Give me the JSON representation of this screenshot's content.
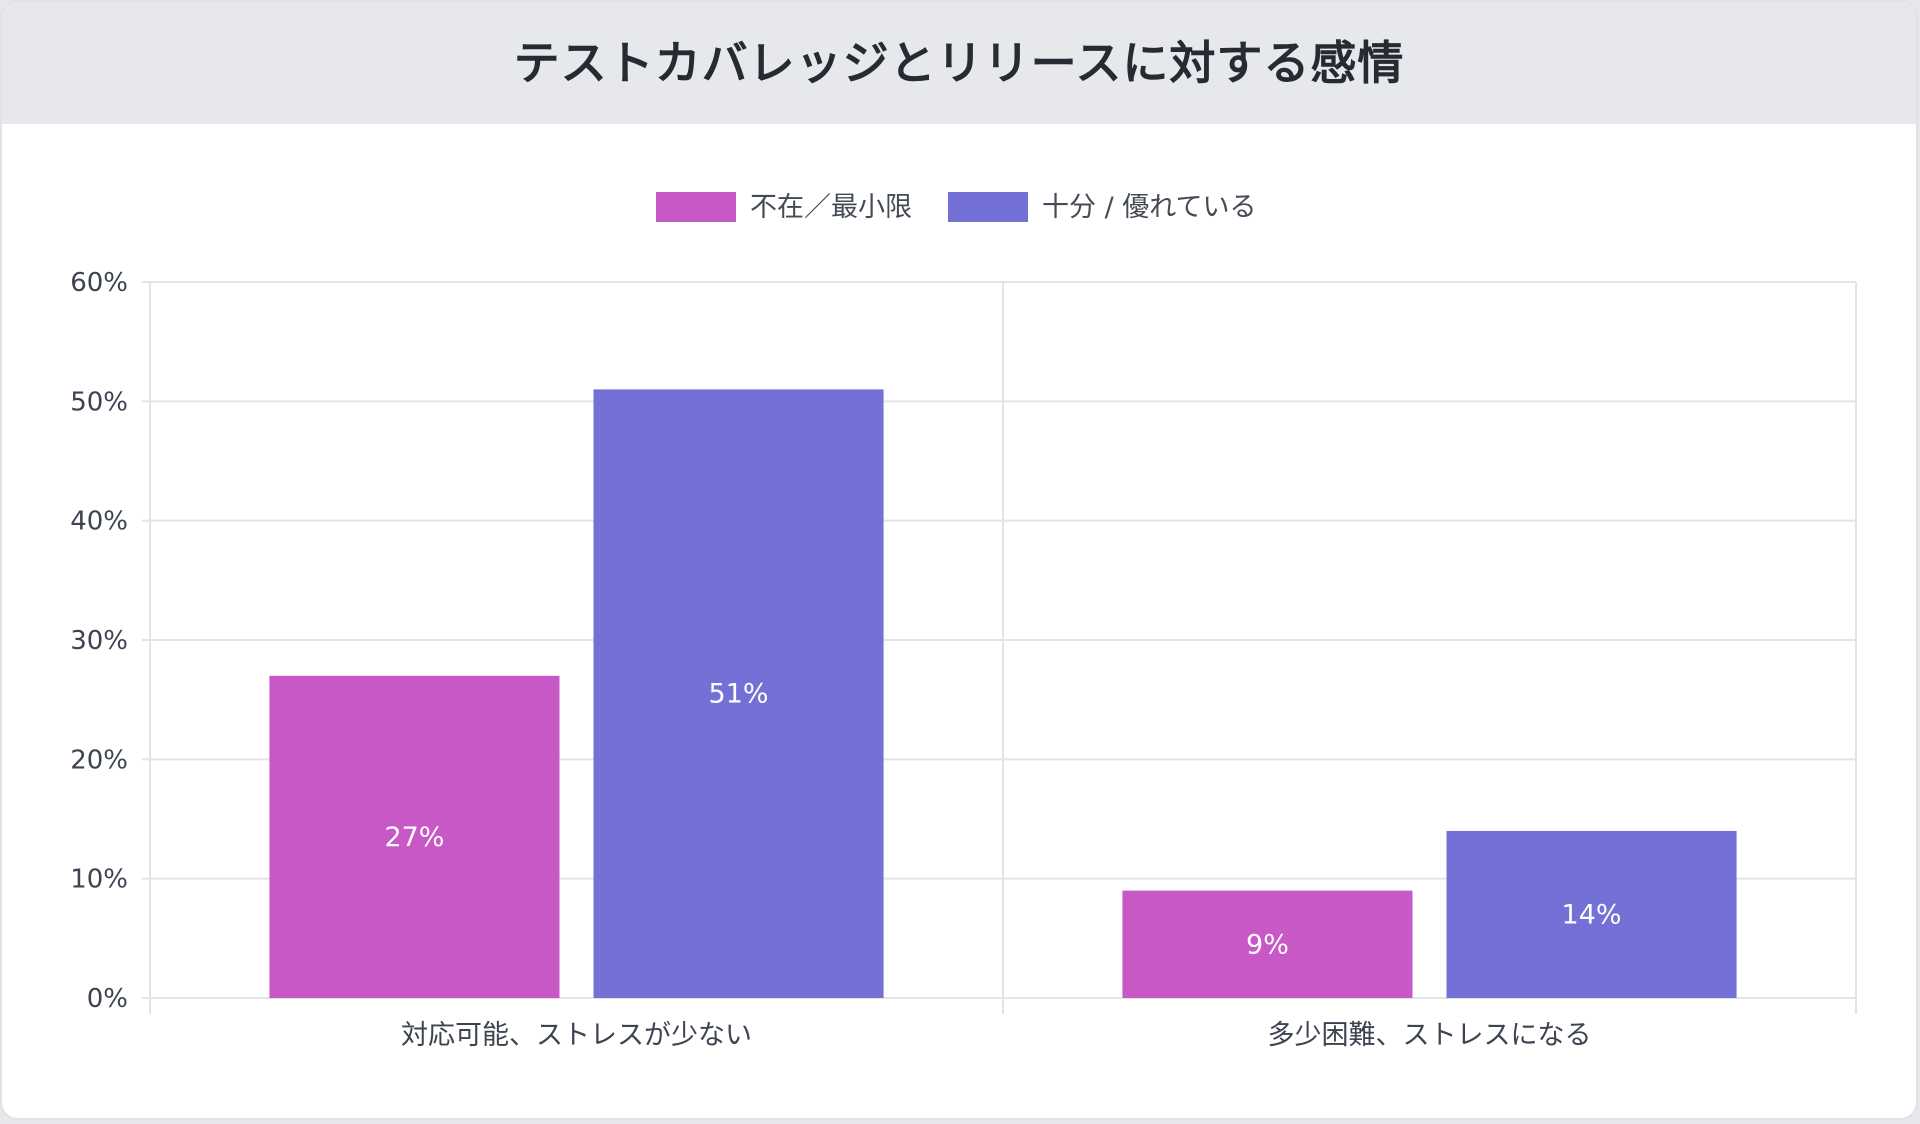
{
  "title": "テストカバレッジとリリースに対する感情",
  "colors": {
    "series_0": "#c858c6",
    "series_1": "#7471d6",
    "grid": "#e4e4e8",
    "axis_text": "#3d4350"
  },
  "chart_data": {
    "type": "bar",
    "title": "テストカバレッジとリリースに対する感情",
    "xlabel": "",
    "ylabel": "",
    "categories": [
      "対応可能、ストレスが少ない",
      "多少困難、ストレスになる"
    ],
    "series": [
      {
        "name": "不在／最小限",
        "values": [
          27,
          9
        ]
      },
      {
        "name": "十分 / 優れている",
        "values": [
          51,
          14
        ]
      }
    ],
    "value_suffix": "%",
    "ylim": [
      0,
      60
    ],
    "y_ticks": [
      0,
      10,
      20,
      30,
      40,
      50,
      60
    ],
    "y_tick_labels": [
      "0%",
      "10%",
      "20%",
      "30%",
      "40%",
      "50%",
      "60%"
    ],
    "bar_labels": [
      [
        "27%",
        "9%"
      ],
      [
        "51%",
        "14%"
      ]
    ],
    "legend_position": "top-center",
    "grid": true
  }
}
